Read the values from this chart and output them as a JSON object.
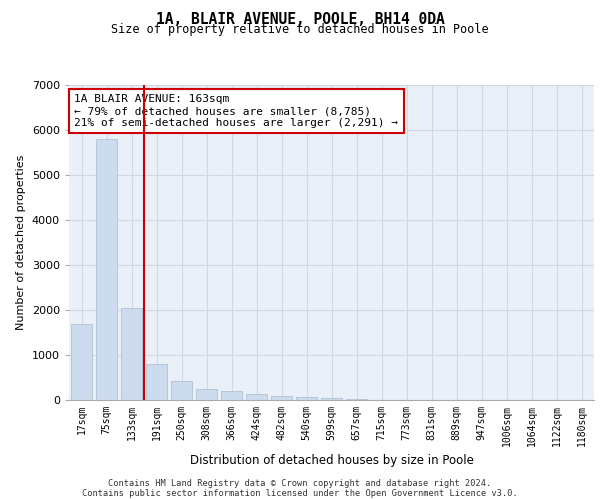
{
  "title": "1A, BLAIR AVENUE, POOLE, BH14 0DA",
  "subtitle": "Size of property relative to detached houses in Poole",
  "xlabel": "Distribution of detached houses by size in Poole",
  "ylabel": "Number of detached properties",
  "footnote1": "Contains HM Land Registry data © Crown copyright and database right 2024.",
  "footnote2": "Contains public sector information licensed under the Open Government Licence v3.0.",
  "property_label": "1A BLAIR AVENUE: 163sqm",
  "annotation_line1": "← 79% of detached houses are smaller (8,785)",
  "annotation_line2": "21% of semi-detached houses are larger (2,291) →",
  "bar_color": "#ccdcee",
  "bar_edge_color": "#aabbcc",
  "red_line_color": "#cc0000",
  "grid_color": "#d0d8e8",
  "background_color": "#eaf0f8",
  "categories": [
    "17sqm",
    "75sqm",
    "133sqm",
    "191sqm",
    "250sqm",
    "308sqm",
    "366sqm",
    "424sqm",
    "482sqm",
    "540sqm",
    "599sqm",
    "657sqm",
    "715sqm",
    "773sqm",
    "831sqm",
    "889sqm",
    "947sqm",
    "1006sqm",
    "1064sqm",
    "1122sqm",
    "1180sqm"
  ],
  "values": [
    1700,
    5800,
    2050,
    800,
    430,
    240,
    200,
    130,
    80,
    70,
    55,
    25,
    0,
    0,
    0,
    0,
    0,
    0,
    0,
    0,
    0
  ],
  "red_line_x": 2.5,
  "ylim": [
    0,
    7000
  ],
  "yticks": [
    0,
    1000,
    2000,
    3000,
    4000,
    5000,
    6000,
    7000
  ]
}
